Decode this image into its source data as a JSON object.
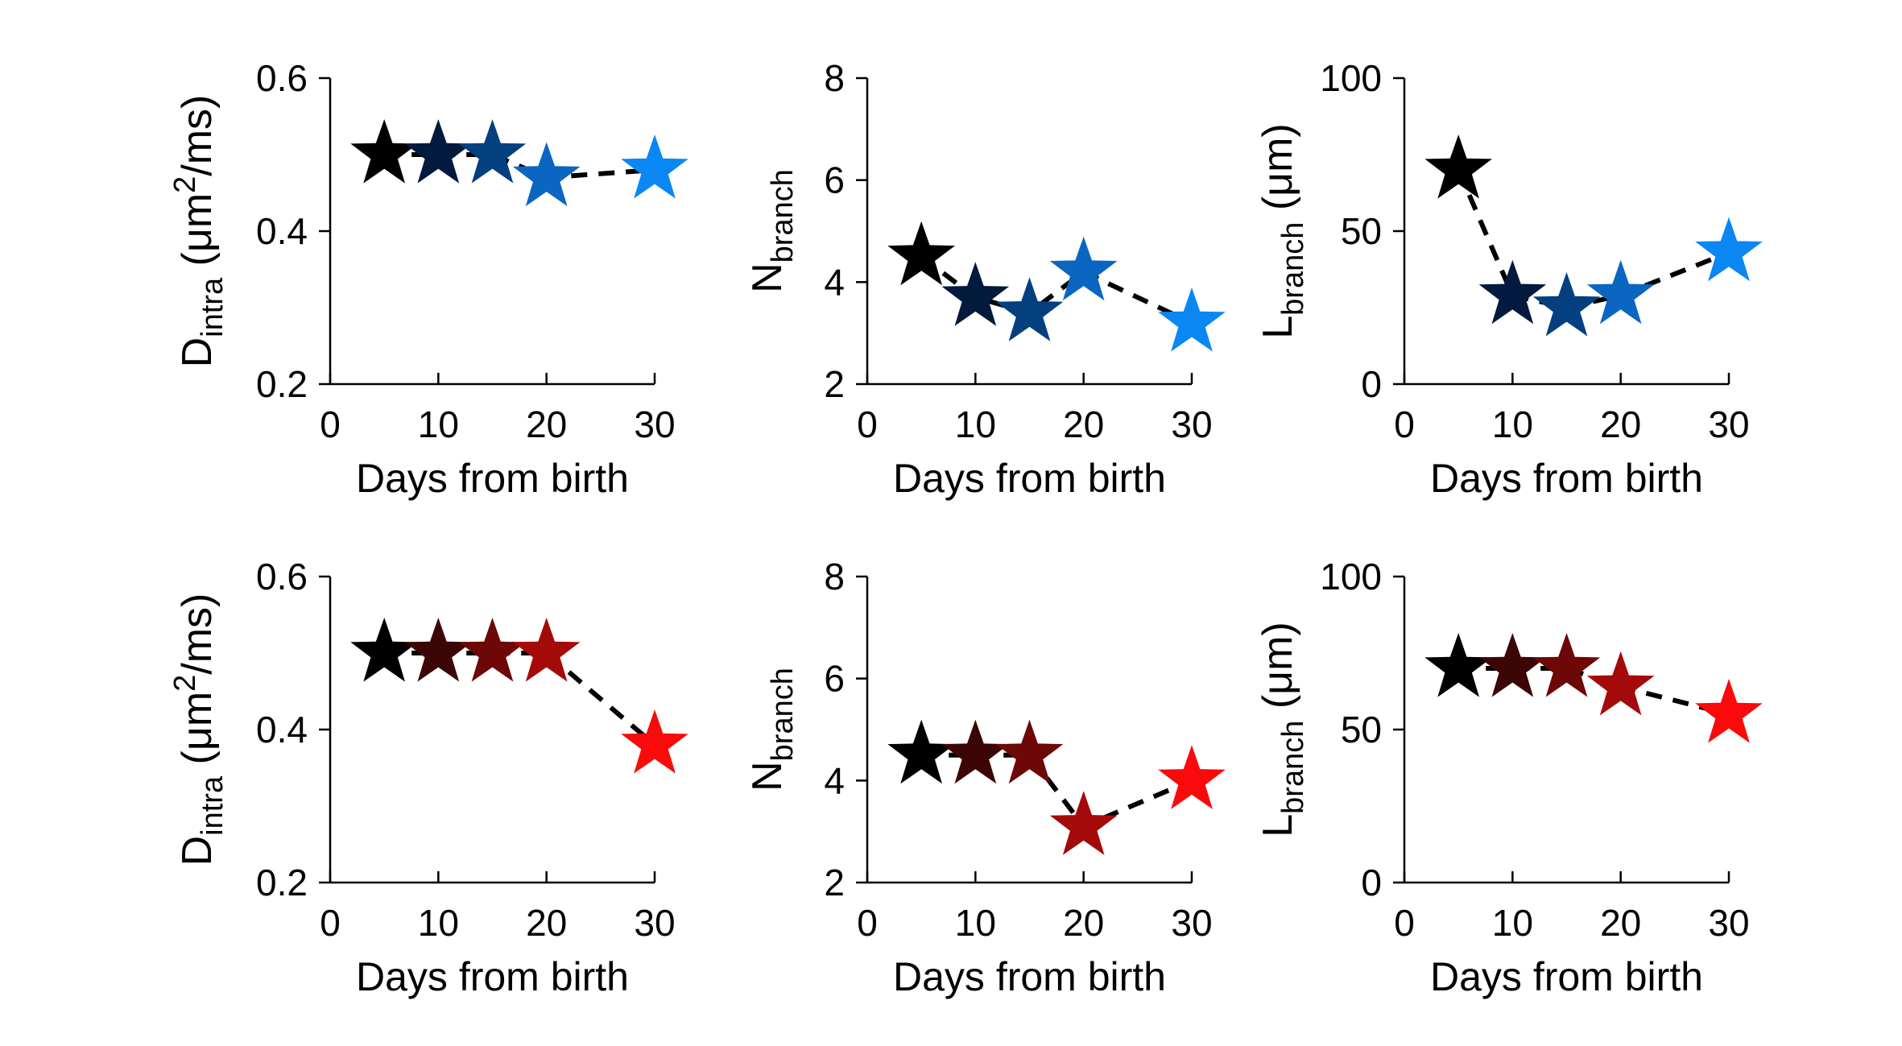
{
  "chart_data": [
    {
      "type": "scatter",
      "xlabel": "Days from birth",
      "ylabel": {
        "main": "D",
        "sub": "intra",
        "rest": " (μm",
        "sup": "2",
        "tail": "/ms)"
      },
      "xlim": [
        0,
        30
      ],
      "ylim": [
        0.2,
        0.6
      ],
      "xticks": [
        0,
        10,
        20,
        30
      ],
      "xtick_labels": [
        "0",
        "10",
        "20",
        "30"
      ],
      "yticks": [
        0.2,
        0.4,
        0.6
      ],
      "ytick_labels": [
        "0.2",
        "0.4",
        "0.6"
      ],
      "marker": "star",
      "line_style": "dashed",
      "grid": false,
      "x": [
        5,
        10,
        15,
        20,
        30
      ],
      "y": [
        0.5,
        0.5,
        0.5,
        0.47,
        0.48
      ],
      "colors": [
        "#000000",
        "#021a3d",
        "#043f80",
        "#0b66c2",
        "#0b87f4"
      ]
    },
    {
      "type": "scatter",
      "xlabel": "Days from birth",
      "ylabel": {
        "main": "N",
        "sub": "branch",
        "rest": "",
        "sup": "",
        "tail": ""
      },
      "xlim": [
        0,
        30
      ],
      "ylim": [
        2,
        8
      ],
      "xticks": [
        0,
        10,
        20,
        30
      ],
      "xtick_labels": [
        "0",
        "10",
        "20",
        "30"
      ],
      "yticks": [
        2,
        4,
        6,
        8
      ],
      "ytick_labels": [
        "2",
        "4",
        "6",
        "8"
      ],
      "marker": "star",
      "line_style": "dashed",
      "grid": false,
      "x": [
        5,
        10,
        15,
        20,
        30
      ],
      "y": [
        4.5,
        3.7,
        3.4,
        4.2,
        3.2
      ],
      "colors": [
        "#000000",
        "#021a3d",
        "#043f80",
        "#0b66c2",
        "#0b87f4"
      ]
    },
    {
      "type": "scatter",
      "xlabel": "Days from birth",
      "ylabel": {
        "main": "L",
        "sub": "branch",
        "rest": " (μm)",
        "sup": "",
        "tail": ""
      },
      "xlim": [
        0,
        30
      ],
      "ylim": [
        0,
        100
      ],
      "xticks": [
        0,
        10,
        20,
        30
      ],
      "xtick_labels": [
        "0",
        "10",
        "20",
        "30"
      ],
      "yticks": [
        0,
        50,
        100
      ],
      "ytick_labels": [
        "0",
        "50",
        "100"
      ],
      "marker": "star",
      "line_style": "dashed",
      "grid": false,
      "x": [
        5,
        10,
        15,
        20,
        30
      ],
      "y": [
        70,
        29,
        25,
        29,
        43
      ],
      "colors": [
        "#000000",
        "#021a3d",
        "#043f80",
        "#0b66c2",
        "#0b87f4"
      ]
    },
    {
      "type": "scatter",
      "xlabel": "Days from birth",
      "ylabel": {
        "main": "D",
        "sub": "intra",
        "rest": " (μm",
        "sup": "2",
        "tail": "/ms)"
      },
      "xlim": [
        0,
        30
      ],
      "ylim": [
        0.2,
        0.6
      ],
      "xticks": [
        0,
        10,
        20,
        30
      ],
      "xtick_labels": [
        "0",
        "10",
        "20",
        "30"
      ],
      "yticks": [
        0.2,
        0.4,
        0.6
      ],
      "ytick_labels": [
        "0.2",
        "0.4",
        "0.6"
      ],
      "marker": "star",
      "line_style": "dashed",
      "grid": false,
      "x": [
        5,
        10,
        15,
        20,
        30
      ],
      "y": [
        0.5,
        0.5,
        0.5,
        0.5,
        0.38
      ],
      "colors": [
        "#000000",
        "#3d0606",
        "#6e0707",
        "#a50a0a",
        "#fa0a0a"
      ]
    },
    {
      "type": "scatter",
      "xlabel": "Days from birth",
      "ylabel": {
        "main": "N",
        "sub": "branch",
        "rest": "",
        "sup": "",
        "tail": ""
      },
      "xlim": [
        0,
        30
      ],
      "ylim": [
        2,
        8
      ],
      "xticks": [
        0,
        10,
        20,
        30
      ],
      "xtick_labels": [
        "0",
        "10",
        "20",
        "30"
      ],
      "yticks": [
        2,
        4,
        6,
        8
      ],
      "ytick_labels": [
        "2",
        "4",
        "6",
        "8"
      ],
      "marker": "star",
      "line_style": "dashed",
      "grid": false,
      "x": [
        5,
        10,
        15,
        20,
        30
      ],
      "y": [
        4.5,
        4.5,
        4.5,
        3.1,
        4.0
      ],
      "colors": [
        "#000000",
        "#3d0606",
        "#6e0707",
        "#a50a0a",
        "#fa0a0a"
      ]
    },
    {
      "type": "scatter",
      "xlabel": "Days from birth",
      "ylabel": {
        "main": "L",
        "sub": "branch",
        "rest": " (μm)",
        "sup": "",
        "tail": ""
      },
      "xlim": [
        0,
        30
      ],
      "ylim": [
        0,
        100
      ],
      "xticks": [
        0,
        10,
        20,
        30
      ],
      "xtick_labels": [
        "0",
        "10",
        "20",
        "30"
      ],
      "yticks": [
        0,
        50,
        100
      ],
      "ytick_labels": [
        "0",
        "50",
        "100"
      ],
      "marker": "star",
      "line_style": "dashed",
      "grid": false,
      "x": [
        5,
        10,
        15,
        20,
        30
      ],
      "y": [
        70,
        70,
        70,
        64,
        55
      ],
      "colors": [
        "#000000",
        "#3d0606",
        "#6e0707",
        "#a50a0a",
        "#fa0a0a"
      ]
    }
  ]
}
